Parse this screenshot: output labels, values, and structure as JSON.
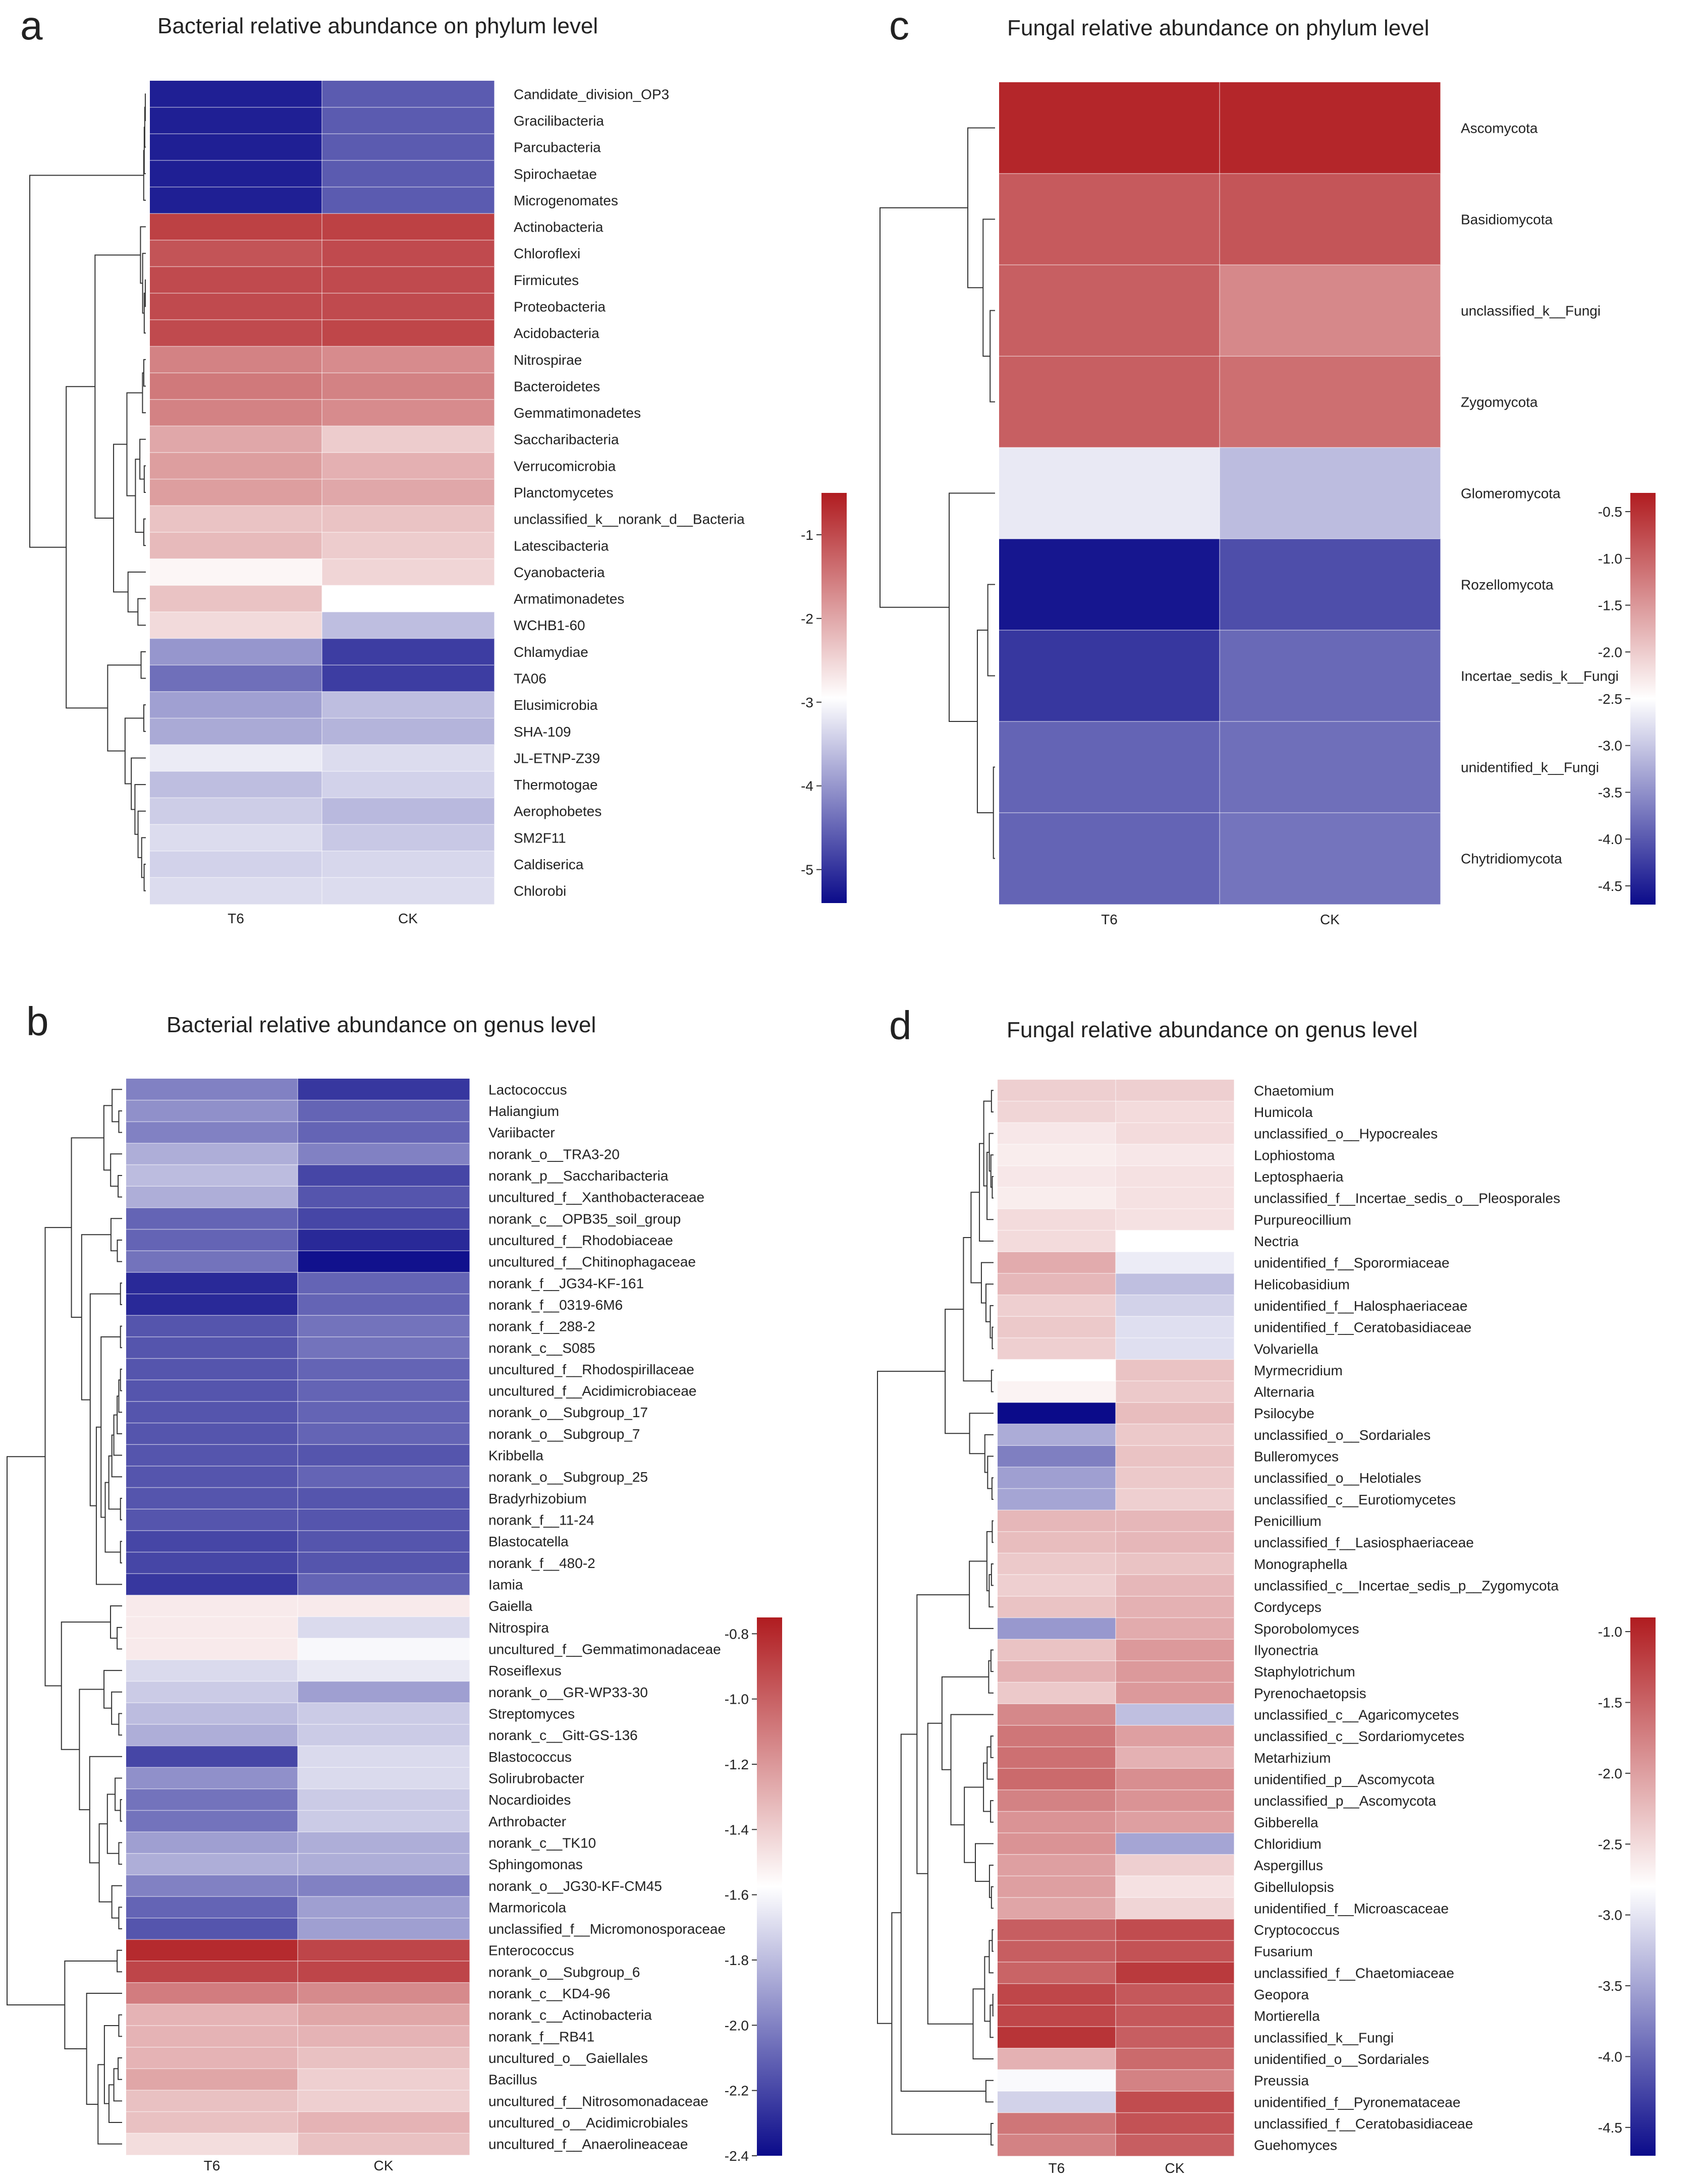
{
  "color_scale": {
    "low": "#0b0b8a",
    "mid": "#ffffff",
    "high": "#b01c20"
  },
  "chart_data": [
    {
      "type": "heatmap",
      "panel_label": "a",
      "title": "Bacterial relative abundance on phylum level",
      "columns": [
        "T6",
        "CK"
      ],
      "rows": [
        "Candidate_division_OP3",
        "Gracilibacteria",
        "Parcubacteria",
        "Spirochaetae",
        "Microgenomates",
        "Actinobacteria",
        "Chloroflexi",
        "Firmicutes",
        "Proteobacteria",
        "Acidobacteria",
        "Nitrospirae",
        "Bacteroidetes",
        "Gemmatimonadetes",
        "Saccharibacteria",
        "Verrucomicrobia",
        "Planctomycetes",
        "unclassified_k__norank_d__Bacteria",
        "Latescibacteria",
        "Cyanobacteria",
        "Armatimonadetes",
        "WCHB1-60",
        "Chlamydiae",
        "TA06",
        "Elusimicrobia",
        "SHA-109",
        "JL-ETNP-Z39",
        "Thermotogae",
        "Aerophobetes",
        "SM2F11",
        "Caldiserica",
        "Chlorobi"
      ],
      "values": [
        [
          -5.2,
          -4.6
        ],
        [
          -5.2,
          -4.6
        ],
        [
          -5.2,
          -4.6
        ],
        [
          -5.2,
          -4.6
        ],
        [
          -5.2,
          -4.6
        ],
        [
          -0.9,
          -0.9
        ],
        [
          -1.1,
          -1.0
        ],
        [
          -1.0,
          -1.0
        ],
        [
          -1.0,
          -1.0
        ],
        [
          -1.0,
          -0.95
        ],
        [
          -1.6,
          -1.7
        ],
        [
          -1.5,
          -1.6
        ],
        [
          -1.6,
          -1.7
        ],
        [
          -2.0,
          -2.4
        ],
        [
          -1.9,
          -2.1
        ],
        [
          -1.9,
          -2.0
        ],
        [
          -2.3,
          -2.3
        ],
        [
          -2.2,
          -2.4
        ],
        [
          -2.85,
          -2.5
        ],
        [
          -2.3,
          -2.95
        ],
        [
          -2.55,
          -3.6
        ],
        [
          -4.0,
          -4.9
        ],
        [
          -4.4,
          -4.9
        ],
        [
          -3.9,
          -3.6
        ],
        [
          -3.8,
          -3.7
        ],
        [
          -3.15,
          -3.3
        ],
        [
          -3.6,
          -3.4
        ],
        [
          -3.45,
          -3.65
        ],
        [
          -3.3,
          -3.5
        ],
        [
          -3.4,
          -3.35
        ],
        [
          -3.3,
          -3.3
        ]
      ],
      "scale": {
        "min": -5.4,
        "max": -0.5,
        "ticks": [
          "-1",
          "-2",
          "-3",
          "-4",
          "-5"
        ],
        "tick_values": [
          -1,
          -2,
          -3,
          -4,
          -5
        ]
      }
    },
    {
      "type": "heatmap",
      "panel_label": "b",
      "title": "Bacterial relative abundance on genus level",
      "columns": [
        "T6",
        "CK"
      ],
      "rows": [
        "Lactococcus",
        "Haliangium",
        "Variibacter",
        "norank_o__TRA3-20",
        "norank_p__Saccharibacteria",
        "uncultured_f__Xanthobacteraceae",
        "norank_c__OPB35_soil_group",
        "uncultured_f__Rhodobiaceae",
        "uncultured_f__Chitinophagaceae",
        "norank_f__JG34-KF-161",
        "norank_f__0319-6M6",
        "norank_f__288-2",
        "norank_c__S085",
        "uncultured_f__Rhodospirillaceae",
        "uncultured_f__Acidimicrobiaceae",
        "norank_o__Subgroup_17",
        "norank_o__Subgroup_7",
        "Kribbella",
        "norank_o__Subgroup_25",
        "Bradyrhizobium",
        "norank_f__11-24",
        "Blastocatella",
        "norank_f__480-2",
        "Iamia",
        "Gaiella",
        "Nitrospira",
        "uncultured_f__Gemmatimonadaceae",
        "Roseiflexus",
        "norank_o__GR-WP33-30",
        "Streptomyces",
        "norank_c__Gitt-GS-136",
        "Blastococcus",
        "Solirubrobacter",
        "Nocardioides",
        "Arthrobacter",
        "norank_c__TK10",
        "Sphingomonas",
        "norank_o__JG30-KF-CM45",
        "Marmoricola",
        "unclassified_f__Micromonosporaceae",
        "Enterococcus",
        "norank_o__Subgroup_6",
        "norank_c__KD4-96",
        "norank_c__Actinobacteria",
        "norank_f__RB41",
        "uncultured_o__Gaiellales",
        "Bacillus",
        "uncultured_f__Nitrosomonadaceae",
        "uncultured_o__Acidimicrobiales",
        "uncultured_f__Anaerolineaceae"
      ],
      "values": [
        [
          -2.0,
          -2.25
        ],
        [
          -1.95,
          -2.1
        ],
        [
          -2.0,
          -2.1
        ],
        [
          -1.85,
          -2.0
        ],
        [
          -1.8,
          -2.2
        ],
        [
          -1.85,
          -2.15
        ],
        [
          -2.1,
          -2.2
        ],
        [
          -2.1,
          -2.3
        ],
        [
          -2.05,
          -2.38
        ],
        [
          -2.3,
          -2.1
        ],
        [
          -2.3,
          -2.1
        ],
        [
          -2.15,
          -2.05
        ],
        [
          -2.15,
          -2.05
        ],
        [
          -2.15,
          -2.1
        ],
        [
          -2.15,
          -2.1
        ],
        [
          -2.15,
          -2.1
        ],
        [
          -2.15,
          -2.1
        ],
        [
          -2.15,
          -2.15
        ],
        [
          -2.15,
          -2.1
        ],
        [
          -2.15,
          -2.15
        ],
        [
          -2.15,
          -2.15
        ],
        [
          -2.2,
          -2.15
        ],
        [
          -2.2,
          -2.15
        ],
        [
          -2.25,
          -2.1
        ],
        [
          -1.5,
          -1.5
        ],
        [
          -1.5,
          -1.7
        ],
        [
          -1.5,
          -1.6
        ],
        [
          -1.7,
          -1.65
        ],
        [
          -1.75,
          -1.9
        ],
        [
          -1.8,
          -1.75
        ],
        [
          -1.85,
          -1.75
        ],
        [
          -2.2,
          -1.7
        ],
        [
          -1.95,
          -1.7
        ],
        [
          -2.05,
          -1.75
        ],
        [
          -2.05,
          -1.75
        ],
        [
          -1.9,
          -1.85
        ],
        [
          -1.85,
          -1.85
        ],
        [
          -2.0,
          -2.0
        ],
        [
          -2.1,
          -1.9
        ],
        [
          -2.15,
          -1.9
        ],
        [
          -0.8,
          -0.9
        ],
        [
          -0.9,
          -0.9
        ],
        [
          -1.1,
          -1.15
        ],
        [
          -1.3,
          -1.25
        ],
        [
          -1.3,
          -1.3
        ],
        [
          -1.3,
          -1.35
        ],
        [
          -1.25,
          -1.4
        ],
        [
          -1.35,
          -1.4
        ],
        [
          -1.35,
          -1.3
        ],
        [
          -1.45,
          -1.35
        ]
      ],
      "scale": {
        "min": -2.4,
        "max": -0.75,
        "ticks": [
          "-0.8",
          "-1.0",
          "-1.2",
          "-1.4",
          "-1.6",
          "-1.8",
          "-2.0",
          "-2.2",
          "-2.4"
        ],
        "tick_values": [
          -0.8,
          -1.0,
          -1.2,
          -1.4,
          -1.6,
          -1.8,
          -2.0,
          -2.2,
          -2.4
        ]
      }
    },
    {
      "type": "heatmap",
      "panel_label": "c",
      "title": "Fungal relative abundance on phylum level",
      "columns": [
        "T6",
        "CK"
      ],
      "rows": [
        "Ascomycota",
        "Basidiomycota",
        "unclassified_k__Fungi",
        "Zygomycota",
        "Glomeromycota",
        "Rozellomycota",
        "Incertae_sedis_k__Fungi",
        "unidentified_k__Fungi",
        "Chytridiomycota"
      ],
      "values": [
        [
          -0.4,
          -0.4
        ],
        [
          -0.9,
          -0.85
        ],
        [
          -0.95,
          -1.35
        ],
        [
          -0.95,
          -1.1
        ],
        [
          -2.7,
          -3.1
        ],
        [
          -4.6,
          -4.1
        ],
        [
          -4.3,
          -3.85
        ],
        [
          -3.9,
          -3.8
        ],
        [
          -3.9,
          -3.75
        ]
      ],
      "scale": {
        "min": -4.7,
        "max": -0.3,
        "ticks": [
          "-0.5",
          "-1.0",
          "-1.5",
          "-2.0",
          "-2.5",
          "-3.0",
          "-3.5",
          "-4.0",
          "-4.5"
        ],
        "tick_values": [
          -0.5,
          -1.0,
          -1.5,
          -2.0,
          -2.5,
          -3.0,
          -3.5,
          -4.0,
          -4.5
        ]
      }
    },
    {
      "type": "heatmap",
      "panel_label": "d",
      "title": "Fungal relative abundance on genus level",
      "columns": [
        "T6",
        "CK"
      ],
      "rows": [
        "Chaetomium",
        "Humicola",
        "unclassified_o__Hypocreales",
        "Lophiostoma",
        "Leptosphaeria",
        "unclassified_f__Incertae_sedis_o__Pleosporales",
        "Purpureocillium",
        "Nectria",
        "unidentified_f__Sporormiaceae",
        "Helicobasidium",
        "unidentified_f__Halosphaeriaceae",
        "unidentified_f__Ceratobasidiaceae",
        "Volvariella",
        "Myrmecridium",
        "Alternaria",
        "Psilocybe",
        "unclassified_o__Sordariales",
        "Bulleromyces",
        "unclassified_o__Helotiales",
        "unclassified_c__Eurotiomycetes",
        "Penicillium",
        "unclassified_f__Lasiosphaeriaceae",
        "Monographella",
        "unclassified_c__Incertae_sedis_p__Zygomycota",
        "Cordyceps",
        "Sporobolomyces",
        "Ilyonectria",
        "Staphylotrichum",
        "Pyrenochaetopsis",
        "unclassified_c__Agaricomycetes",
        "unclassified_c__Sordariomycetes",
        "Metarhizium",
        "unidentified_p__Ascomycota",
        "unclassified_p__Ascomycota",
        "Gibberella",
        "Chloridium",
        "Aspergillus",
        "Gibellulopsis",
        "unidentified_f__Microascaceae",
        "Cryptococcus",
        "Fusarium",
        "unclassified_f__Chaetomiaceae",
        "Geopora",
        "Mortierella",
        "unclassified_k__Fungi",
        "unidentified_o__Sordariales",
        "Preussia",
        "unidentified_f__Pyronemataceae",
        "unclassified_f__Ceratobasidiaceae",
        "Guehomyces"
      ],
      "values": [
        [
          -2.4,
          -2.4
        ],
        [
          -2.45,
          -2.5
        ],
        [
          -2.6,
          -2.5
        ],
        [
          -2.65,
          -2.6
        ],
        [
          -2.6,
          -2.55
        ],
        [
          -2.65,
          -2.55
        ],
        [
          -2.5,
          -2.55
        ],
        [
          -2.5,
          -2.8
        ],
        [
          -2.1,
          -2.95
        ],
        [
          -2.2,
          -3.3
        ],
        [
          -2.4,
          -3.15
        ],
        [
          -2.35,
          -3.05
        ],
        [
          -2.4,
          -3.05
        ],
        [
          -2.8,
          -2.3
        ],
        [
          -2.7,
          -2.35
        ],
        [
          -4.7,
          -2.25
        ],
        [
          -3.45,
          -2.35
        ],
        [
          -3.8,
          -2.3
        ],
        [
          -3.55,
          -2.35
        ],
        [
          -3.5,
          -2.4
        ],
        [
          -2.2,
          -2.2
        ],
        [
          -2.25,
          -2.2
        ],
        [
          -2.35,
          -2.3
        ],
        [
          -2.4,
          -2.2
        ],
        [
          -2.3,
          -2.15
        ],
        [
          -3.6,
          -2.1
        ],
        [
          -2.3,
          -1.95
        ],
        [
          -2.15,
          -1.95
        ],
        [
          -2.35,
          -1.95
        ],
        [
          -1.8,
          -3.3
        ],
        [
          -1.65,
          -2.0
        ],
        [
          -1.6,
          -2.15
        ],
        [
          -1.55,
          -1.85
        ],
        [
          -1.75,
          -1.9
        ],
        [
          -1.9,
          -2.0
        ],
        [
          -1.9,
          -3.5
        ],
        [
          -2.0,
          -2.4
        ],
        [
          -2.0,
          -2.55
        ],
        [
          -2.05,
          -2.45
        ],
        [
          -1.45,
          -1.3
        ],
        [
          -1.45,
          -1.35
        ],
        [
          -1.5,
          -1.15
        ],
        [
          -1.25,
          -1.4
        ],
        [
          -1.25,
          -1.4
        ],
        [
          -1.1,
          -1.45
        ],
        [
          -2.15,
          -1.55
        ],
        [
          -2.85,
          -1.75
        ],
        [
          -3.15,
          -1.3
        ],
        [
          -1.65,
          -1.35
        ],
        [
          -1.75,
          -1.45
        ]
      ],
      "scale": {
        "min": -4.7,
        "max": -0.9,
        "ticks": [
          "-1.0",
          "-1.5",
          "-2.0",
          "-2.5",
          "-3.0",
          "-3.5",
          "-4.0",
          "-4.5"
        ],
        "tick_values": [
          -1.0,
          -1.5,
          -2.0,
          -2.5,
          -3.0,
          -3.5,
          -4.0,
          -4.5
        ]
      }
    }
  ]
}
